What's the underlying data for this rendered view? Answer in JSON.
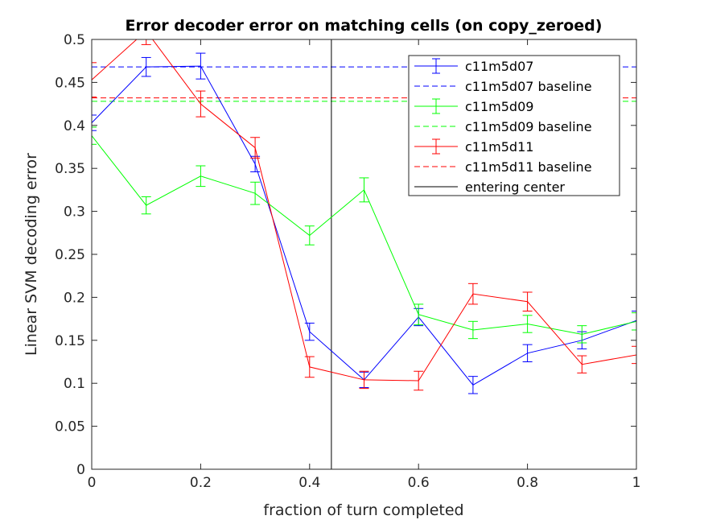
{
  "chart_data": {
    "type": "line",
    "title": "Error decoder error on matching cells (on copy_zeroed)",
    "xlabel": "fraction of turn completed",
    "ylabel": "Linear SVM decoding error",
    "xlim": [
      0,
      1
    ],
    "ylim": [
      0,
      0.5
    ],
    "xticks": [
      0,
      0.2,
      0.4,
      0.6,
      0.8,
      1
    ],
    "xtick_labels": [
      "0",
      "0.2",
      "0.4",
      "0.6",
      "0.8",
      "1"
    ],
    "yticks": [
      0,
      0.05,
      0.1,
      0.15,
      0.2,
      0.25,
      0.3,
      0.35,
      0.4,
      0.45,
      0.5
    ],
    "ytick_labels": [
      "0",
      "0.05",
      "0.1",
      "0.15",
      "0.2",
      "0.25",
      "0.3",
      "0.35",
      "0.4",
      "0.45",
      "0.5"
    ],
    "x": [
      0,
      0.1,
      0.2,
      0.3,
      0.4,
      0.5,
      0.6,
      0.7,
      0.8,
      0.9,
      1.0
    ],
    "grid": false,
    "legend_position": "top-right",
    "series": [
      {
        "name": "c11m5d07",
        "color": "#0000ff",
        "values": [
          0.403,
          0.468,
          0.469,
          0.355,
          0.16,
          0.104,
          0.177,
          0.098,
          0.135,
          0.15,
          0.173
        ],
        "errors": [
          0.009,
          0.011,
          0.015,
          0.009,
          0.01,
          0.009,
          0.01,
          0.01,
          0.01,
          0.01,
          0.011
        ],
        "baseline": 0.468,
        "baseline_name": "c11m5d07 baseline"
      },
      {
        "name": "c11m5d09",
        "color": "#00ff00",
        "values": [
          0.388,
          0.307,
          0.341,
          0.321,
          0.272,
          0.325,
          0.18,
          0.162,
          0.169,
          0.157,
          0.172
        ],
        "errors": [
          0.01,
          0.01,
          0.012,
          0.013,
          0.011,
          0.014,
          0.012,
          0.01,
          0.01,
          0.01,
          0.01
        ],
        "baseline": 0.428,
        "baseline_name": "c11m5d09 baseline"
      },
      {
        "name": "c11m5d11",
        "color": "#ff0000",
        "values": [
          0.453,
          0.51,
          0.425,
          0.374,
          0.119,
          0.104,
          0.103,
          0.204,
          0.195,
          0.122,
          0.133
        ],
        "errors": [
          0.02,
          0.016,
          0.015,
          0.012,
          0.012,
          0.01,
          0.011,
          0.012,
          0.011,
          0.01,
          0.01
        ],
        "baseline": 0.432,
        "baseline_name": "c11m5d11 baseline"
      }
    ],
    "vertical_line": {
      "name": "entering center",
      "x": 0.44,
      "color": "#000000"
    }
  }
}
